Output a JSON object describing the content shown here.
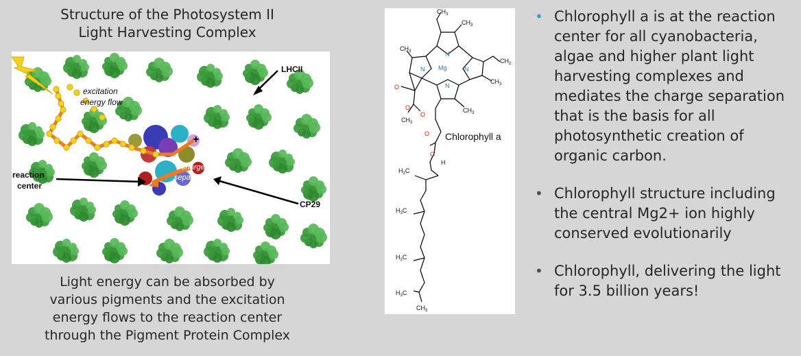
{
  "left_panel": {
    "title_line1": "Structure of the Photosystem II",
    "title_line2": "Light Harvesting Complex",
    "figure_labels": {
      "lhcii": "LHCII",
      "excitation": "excitation",
      "energy_flow": "energy flow",
      "reaction_center_line1": "reaction",
      "reaction_center_line2": "center",
      "charge": "charge",
      "separation": "separation",
      "cp29": "CP29",
      "plus": "+",
      "minus": "−"
    },
    "caption": [
      "Light energy can be absorbed by",
      "various pigments and the excitation",
      "energy flows to the reaction center",
      "through the Pigment Protein Complex"
    ]
  },
  "molecule_figure": {
    "label": "Chlorophyll a",
    "ch3": "CH",
    "sub3": "3",
    "ch2": "CH",
    "sub2": "2",
    "h3c": "H",
    "mg": "Mg",
    "n": "N",
    "o": "O",
    "h": "H"
  },
  "bullets": [
    {
      "text_lines": [
        "Chlorophyll a is at the reaction",
        "center for all cyanobacteria,",
        "algae and higher plant light",
        "harvesting complexes and",
        "mediates the charge separation",
        "that is the basis for all",
        "photosynthetic creation of",
        "organic carbon."
      ]
    },
    {
      "text_lines": [
        "Chlorophyll structure including",
        "the central Mg2+ ion highly",
        "conserved evolutionarily"
      ]
    },
    {
      "text_lines": [
        "Chlorophyll, delivering the light",
        "for 3.5 billion years!"
      ]
    }
  ],
  "bullet_char": "•",
  "colors": {
    "background": "#d6d6d6",
    "text": "#262626",
    "accent_bullet": "#2aa7c9",
    "protein_green": "#3a9a3a",
    "energy_flow_orange": "#f07a22",
    "energy_dot_yellow": "#f2d21e",
    "lightning_yellow": "#f5d21a"
  }
}
